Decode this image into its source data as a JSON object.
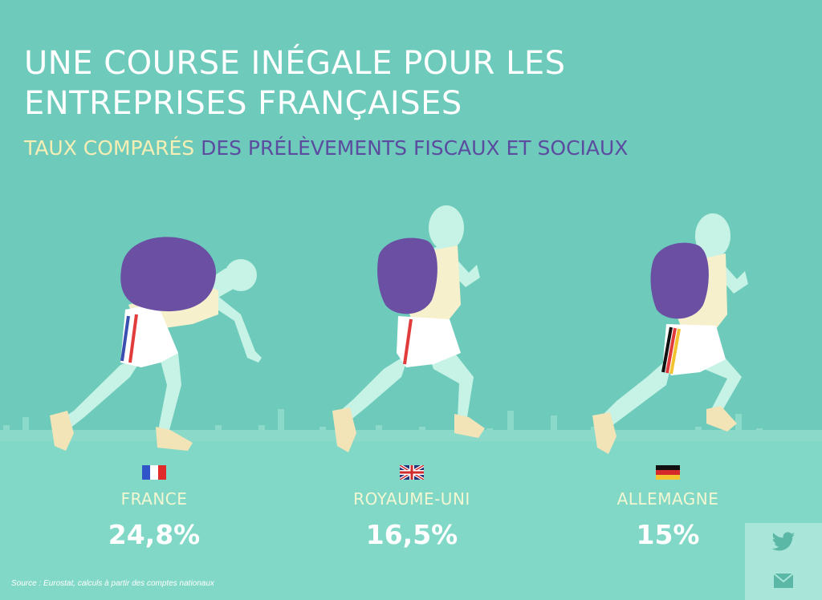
{
  "header": {
    "title_line1": "UNE COURSE INÉGALE POUR LES",
    "title_line2": "ENTREPRISES FRANÇAISES",
    "subtitle_part1": "TAUX COMPARÉS",
    "subtitle_part2": " DES PRÉLÈVEMENTS FISCAUX ET SOCIAUX"
  },
  "countries": [
    {
      "name": "FRANCE",
      "value": "24,8%",
      "flag": "flag-france-icon"
    },
    {
      "name": "ROYAUME-UNI",
      "value": "16,5%",
      "flag": "flag-uk-icon"
    },
    {
      "name": "ALLEMAGNE",
      "value": "15%",
      "flag": "flag-germany-icon"
    }
  ],
  "source": "Source : Eurostat, calculs à partir des comptes nationaux",
  "share": {
    "twitter": "twitter-icon",
    "email": "email-icon"
  },
  "colors": {
    "background": "#6ecbbb",
    "track": "#82d8c7",
    "backpack": "#6a4fa3",
    "body": "#c6f3e6",
    "shirt": "#f7f0cc",
    "subtitle_accent": "#f6eeb5",
    "subtitle_main": "#5b4ca0"
  }
}
